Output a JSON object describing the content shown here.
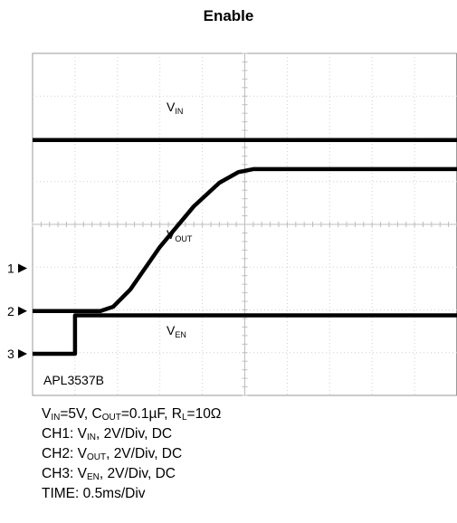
{
  "title": "Enable",
  "chart_data": {
    "type": "line",
    "title": "Enable",
    "divisions": {
      "x": 10,
      "y": 8
    },
    "grid": true,
    "x_unit": "0.5ms/Div",
    "channel_markers": [
      {
        "label": "1",
        "level_div": 2.0
      },
      {
        "label": "2",
        "level_div": 1.0
      },
      {
        "label": "3",
        "level_div": 0.0
      }
    ],
    "series": [
      {
        "label_main": "V",
        "label_sub": "IN",
        "x_div": [
          0,
          10
        ],
        "y_div": [
          5.0,
          5.0
        ]
      },
      {
        "label_main": "V",
        "label_sub": "OUT",
        "x_div": [
          0,
          1.6,
          1.9,
          2.3,
          3.0,
          3.8,
          4.4,
          4.85,
          5.2,
          10
        ],
        "y_div": [
          1.0,
          1.0,
          1.1,
          1.5,
          2.5,
          3.45,
          4.0,
          4.25,
          4.32,
          4.32
        ]
      },
      {
        "label_main": "V",
        "label_sub": "EN",
        "x_div": [
          0,
          1.0,
          1.0,
          10
        ],
        "y_div": [
          0.0,
          0.0,
          0.9,
          0.9
        ]
      }
    ],
    "annotation": "APL3537B"
  },
  "notes": {
    "cond": {
      "v": "V",
      "vin_sub": "IN",
      "vin_val": "=5V, C",
      "cout_sub": "OUT",
      "cout_val": "=0.1µF, R",
      "rl_sub": "L",
      "rl_val": "=10Ω"
    },
    "ch1": {
      "pre": "CH1: V",
      "sub": "IN",
      "post": ", 2V/Div, DC"
    },
    "ch2": {
      "pre": "CH2: V",
      "sub": "OUT",
      "post": ", 2V/Div, DC"
    },
    "ch3": {
      "pre": "CH3: V",
      "sub": "EN",
      "post": ", 2V/Div, DC"
    },
    "time": "TIME: 0.5ms/Div"
  }
}
